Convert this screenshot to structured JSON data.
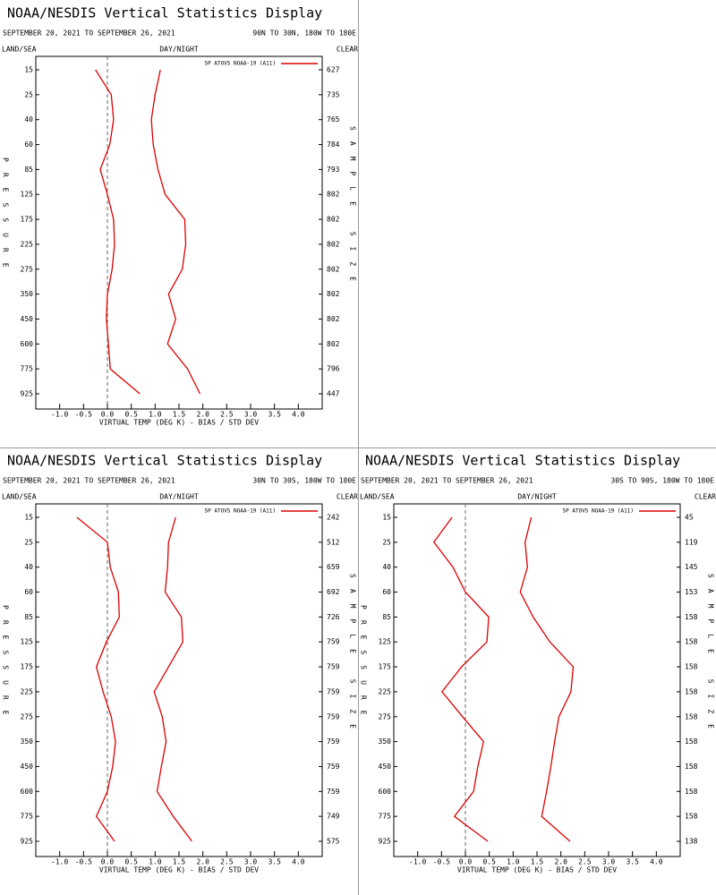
{
  "chart_data": [
    {
      "type": "line",
      "title": "NOAA/NESDIS Vertical Statistics Display",
      "subtitle": "SEPTEMBER 20, 2021 TO SEPTEMBER 26, 2021",
      "region": "90N TO 30N, 180W TO 180E",
      "land_sea": "LAND/SEA",
      "day_night": "DAY/NIGHT",
      "clear": "CLEAR",
      "ylabel": "PRESSURE",
      "y2label": "SAMPLE SIZE",
      "xlabel": "VIRTUAL TEMP (DEG K) - BIAS / STD DEV",
      "categories": [
        15,
        25,
        40,
        60,
        85,
        125,
        175,
        225,
        275,
        350,
        450,
        600,
        775,
        925
      ],
      "sample_sizes": [
        627,
        735,
        765,
        784,
        793,
        802,
        802,
        802,
        802,
        802,
        802,
        802,
        796,
        447
      ],
      "series": [
        {
          "name": "SP ATOVS NOAA-19 (A11)",
          "color": "#dd0000",
          "values": [
            -0.25,
            0.08,
            0.13,
            0.05,
            -0.15,
            0.0,
            0.13,
            0.15,
            0.1,
            0.0,
            -0.02,
            0.02,
            0.06,
            0.68
          ]
        },
        {
          "color": "#dd0000",
          "values": [
            1.11,
            1.0,
            0.92,
            0.96,
            1.06,
            1.21,
            1.62,
            1.64,
            1.57,
            1.28,
            1.43,
            1.26,
            1.68,
            1.94
          ]
        }
      ],
      "xlim": [
        -1.5,
        4.5
      ],
      "xticks": [
        {
          "value": -1,
          "label": "-1.0"
        },
        {
          "value": -0.5,
          "label": "-0.5"
        },
        {
          "value": 0,
          "label": "0.0"
        },
        0.5,
        {
          "value": 1,
          "label": "1.0"
        },
        1.5,
        {
          "value": 2,
          "label": "2.0"
        },
        2.5,
        {
          "value": 3,
          "label": "3.0"
        },
        3.5,
        {
          "value": 4,
          "label": "4.0"
        }
      ]
    },
    {
      "type": "line",
      "title": "NOAA/NESDIS Vertical Statistics Display",
      "subtitle": "SEPTEMBER 20, 2021 TO SEPTEMBER 26, 2021",
      "region": "30N TO 30S, 180W TO 180E",
      "land_sea": "LAND/SEA",
      "day_night": "DAY/NIGHT",
      "clear": "CLEAR",
      "ylabel": "PRESSURE",
      "y2label": "SAMPLE SIZE",
      "xlabel": "VIRTUAL TEMP (DEG K) - BIAS / STD DEV",
      "categories": [
        15,
        25,
        40,
        60,
        85,
        125,
        175,
        225,
        275,
        350,
        450,
        600,
        775,
        925
      ],
      "sample_sizes": [
        242,
        512,
        659,
        692,
        726,
        759,
        759,
        759,
        759,
        759,
        759,
        759,
        749,
        575
      ],
      "series": [
        {
          "name": "SP ATOVS NOAA-19 (A11)",
          "color": "#dd0000",
          "values": [
            -0.64,
            0.0,
            0.06,
            0.23,
            0.25,
            -0.02,
            -0.23,
            -0.09,
            0.08,
            0.17,
            0.11,
            0.0,
            -0.23,
            0.15
          ]
        },
        {
          "color": "#dd0000",
          "values": [
            1.43,
            1.28,
            1.26,
            1.21,
            1.55,
            1.58,
            1.28,
            0.98,
            1.15,
            1.23,
            1.13,
            1.04,
            1.38,
            1.77
          ]
        }
      ],
      "xlim": [
        -1.5,
        4.5
      ],
      "xticks": [
        {
          "value": -1,
          "label": "-1.0"
        },
        {
          "value": -0.5,
          "label": "-0.5"
        },
        {
          "value": 0,
          "label": "0.0"
        },
        0.5,
        {
          "value": 1,
          "label": "1.0"
        },
        1.5,
        {
          "value": 2,
          "label": "2.0"
        },
        2.5,
        {
          "value": 3,
          "label": "3.0"
        },
        3.5,
        {
          "value": 4,
          "label": "4.0"
        }
      ]
    },
    {
      "type": "line",
      "title": "NOAA/NESDIS Vertical Statistics Display",
      "subtitle": "SEPTEMBER 20, 2021 TO SEPTEMBER 26, 2021",
      "region": "30S TO 90S, 180W TO 180E",
      "land_sea": "LAND/SEA",
      "day_night": "DAY/NIGHT",
      "clear": "CLEAR",
      "ylabel": "PRESSURE",
      "y2label": "SAMPLE SIZE",
      "xlabel": "VIRTUAL TEMP (DEG K) - BIAS / STD DEV",
      "categories": [
        15,
        25,
        40,
        60,
        85,
        125,
        175,
        225,
        275,
        350,
        450,
        600,
        775,
        925
      ],
      "sample_sizes": [
        45,
        119,
        145,
        153,
        158,
        158,
        158,
        158,
        158,
        158,
        158,
        158,
        158,
        138
      ],
      "series": [
        {
          "name": "SP ATOVS NOAA-19 (A11)",
          "color": "#dd0000",
          "values": [
            -0.28,
            -0.66,
            -0.26,
            0.0,
            0.49,
            0.45,
            -0.08,
            -0.49,
            -0.06,
            0.38,
            0.26,
            0.17,
            -0.23,
            0.47
          ]
        },
        {
          "color": "#dd0000",
          "values": [
            1.38,
            1.25,
            1.3,
            1.15,
            1.42,
            1.77,
            2.26,
            2.21,
            1.96,
            1.87,
            1.79,
            1.7,
            1.6,
            2.19
          ]
        }
      ],
      "xlim": [
        -1.5,
        4.5
      ],
      "xticks": [
        {
          "value": -1,
          "label": "-1.0"
        },
        {
          "value": -0.5,
          "label": "-0.5"
        },
        {
          "value": 0,
          "label": "0.0"
        },
        0.5,
        {
          "value": 1,
          "label": "1.0"
        },
        1.5,
        {
          "value": 2,
          "label": "2.0"
        },
        2.5,
        {
          "value": 3,
          "label": "3.0"
        },
        3.5,
        {
          "value": 4,
          "label": "4.0"
        }
      ]
    }
  ]
}
